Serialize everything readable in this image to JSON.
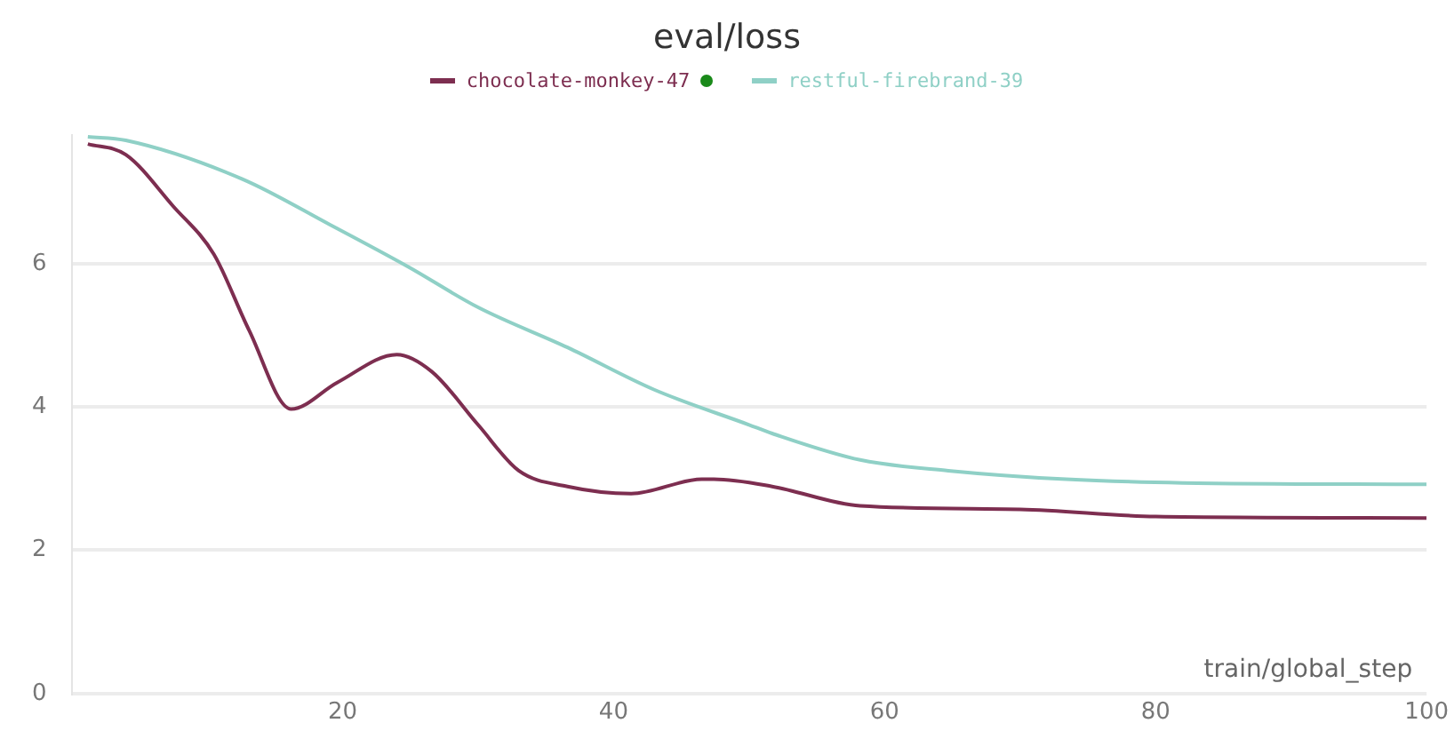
{
  "chart_data": {
    "type": "line",
    "title": "eval/loss",
    "xlabel": "train/global_step",
    "xlim": [
      0,
      100
    ],
    "xticks": [
      20,
      40,
      60,
      80,
      100
    ],
    "ylim": [
      0,
      7.8
    ],
    "yticks": [
      0,
      2,
      4,
      6
    ],
    "grid": "y",
    "legend": "top",
    "marker": "none",
    "line_style": "solid",
    "series": [
      {
        "name": "chocolate-monkey-47",
        "color": "#7d2e50",
        "x": [
          1.2,
          4,
          7.5,
          10.5,
          13.1,
          16.2,
          19.6,
          24,
          26.6,
          30,
          33,
          36.6,
          41.3,
          46.5,
          47.4,
          51.7,
          58.2,
          70,
          80,
          100
        ],
        "values": [
          7.67,
          7.52,
          6.8,
          6.13,
          5.07,
          3.97,
          4.34,
          4.73,
          4.49,
          3.75,
          3.11,
          2.89,
          2.79,
          2.99,
          2.99,
          2.89,
          2.62,
          2.57,
          2.47,
          2.45
        ]
      },
      {
        "name": "restful-firebrand-39",
        "color": "#8fd0c6",
        "x": [
          1.2,
          4,
          12.6,
          19.1,
          24.8,
          30,
          36.6,
          43,
          50,
          51.7,
          58.2,
          64.7,
          73.4,
          82,
          100
        ],
        "values": [
          7.77,
          7.72,
          7.18,
          6.54,
          5.96,
          5.39,
          4.83,
          4.24,
          3.75,
          3.63,
          3.26,
          3.11,
          2.99,
          2.94,
          2.92
        ]
      }
    ]
  }
}
